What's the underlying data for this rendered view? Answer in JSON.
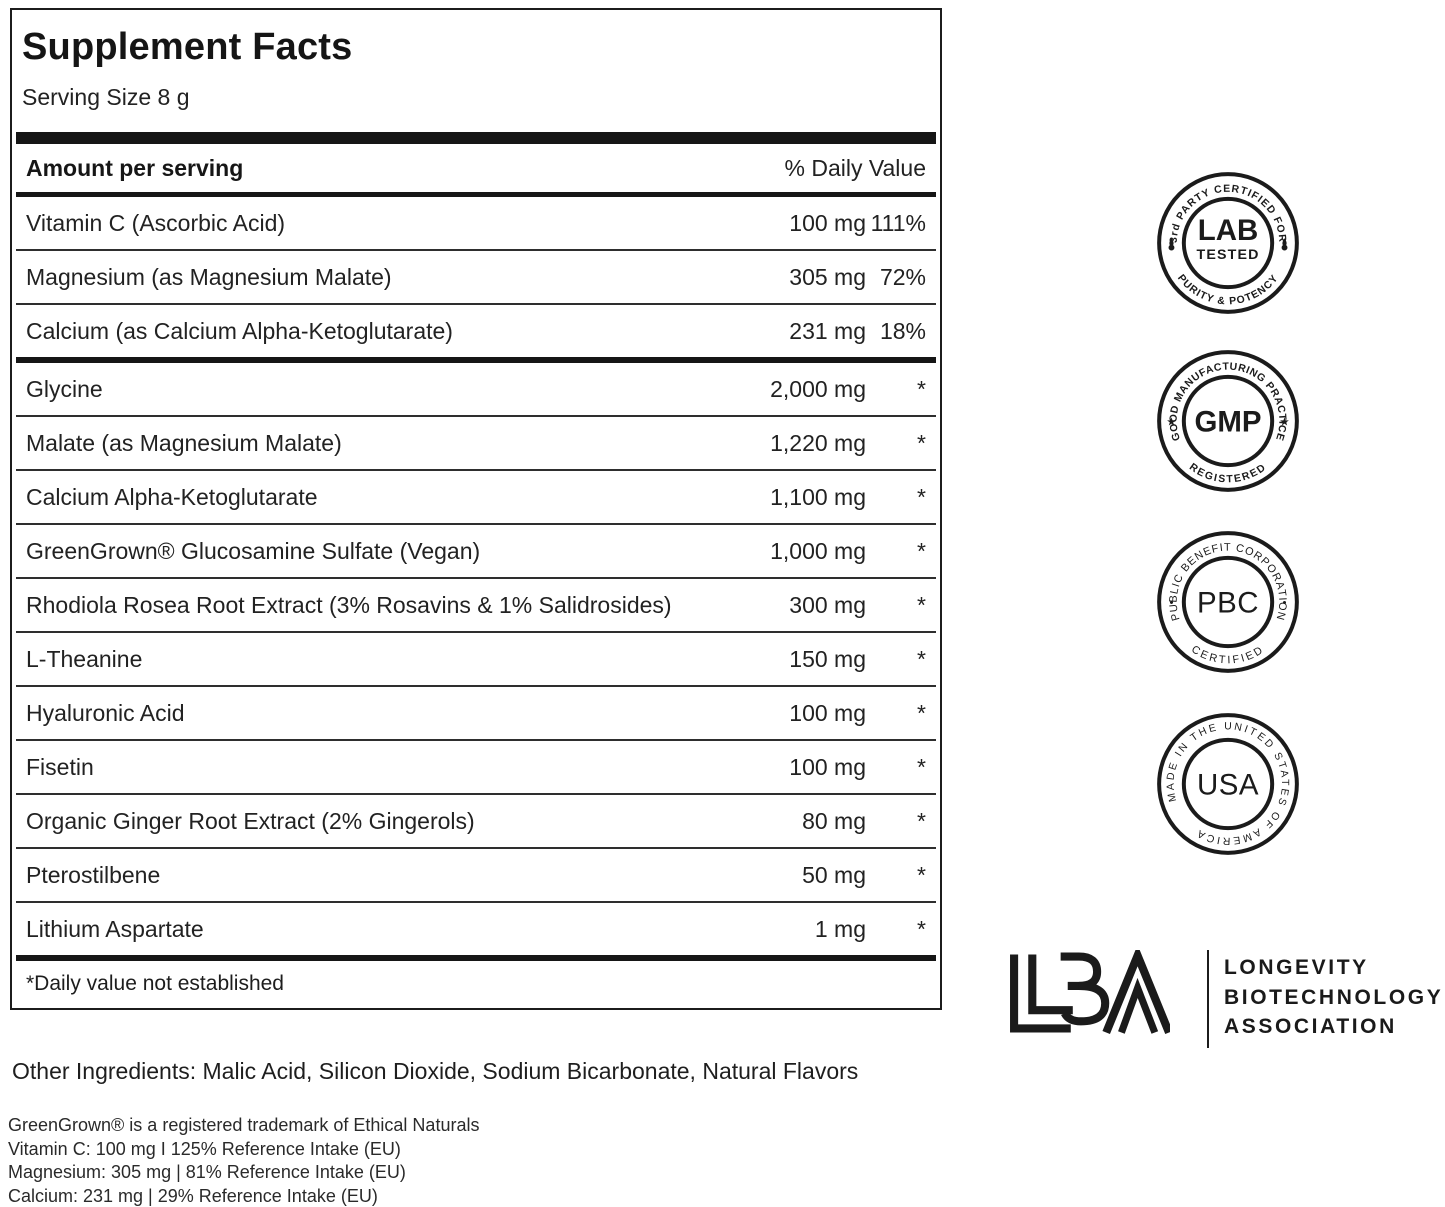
{
  "facts": {
    "title": "Supplement Facts",
    "serving_size": "Serving Size 8 g",
    "col_amount": "Amount per serving",
    "col_dv": "% Daily Value",
    "rows": [
      {
        "name": "Vitamin C (Ascorbic Acid)",
        "amount": "100 mg",
        "dv": "111%"
      },
      {
        "name": "Magnesium (as Magnesium Malate)",
        "amount": "305 mg",
        "dv": "72%"
      },
      {
        "name": "Calcium (as Calcium Alpha-Ketoglutarate)",
        "amount": "231 mg",
        "dv": "18%",
        "thick_after": true
      },
      {
        "name": "Glycine",
        "amount": "2,000 mg",
        "dv": "*"
      },
      {
        "name": "Malate (as Magnesium Malate)",
        "amount": "1,220 mg",
        "dv": "*"
      },
      {
        "name": "Calcium Alpha-Ketoglutarate",
        "amount": "1,100 mg",
        "dv": "*"
      },
      {
        "name": "GreenGrown® Glucosamine Sulfate (Vegan)",
        "amount": "1,000 mg",
        "dv": "*"
      },
      {
        "name": "Rhodiola Rosea Root Extract (3% Rosavins & 1% Salidrosides)",
        "amount": "300 mg",
        "dv": "*"
      },
      {
        "name": "L-Theanine",
        "amount": "150 mg",
        "dv": "*"
      },
      {
        "name": "Hyaluronic Acid",
        "amount": "100 mg",
        "dv": "*"
      },
      {
        "name": "Fisetin",
        "amount": "100 mg",
        "dv": "*"
      },
      {
        "name": "Organic Ginger Root Extract (2% Gingerols)",
        "amount": "80 mg",
        "dv": "*"
      },
      {
        "name": "Pterostilbene",
        "amount": "50 mg",
        "dv": "*"
      },
      {
        "name": "Lithium Aspartate",
        "amount": "1 mg",
        "dv": "*"
      }
    ],
    "footnote": "*Daily value not established"
  },
  "other_ingredients": "Other Ingredients: Malic Acid, Silicon Dioxide, Sodium Bicarbonate, Natural Flavors",
  "fine_print": [
    "GreenGrown® is a registered trademark of Ethical Naturals",
    "Vitamin C: 100 mg I 125% Reference Intake (EU)",
    "Magnesium: 305 mg | 81% Reference Intake (EU)",
    "Calcium: 231 mg | 29% Reference Intake (EU)"
  ],
  "badges": [
    {
      "top_arc": "3rd PARTY CERTIFIED FOR",
      "bottom_arc": "PURITY & POTENCY",
      "center_primary": "LAB",
      "center_secondary": "TESTED",
      "side_symbol": "droplet"
    },
    {
      "top_arc": "GOOD MANUFACTURING PRACTICE",
      "bottom_arc": "REGISTERED",
      "center_primary": "GMP",
      "side_glyph": "★"
    },
    {
      "top_arc": "PUBLIC BENEFIT CORPORATION",
      "bottom_arc": "CERTIFIED",
      "center_primary": "PBC",
      "side_glyph": "•"
    },
    {
      "wrap_arc": "MADE IN THE UNITED STATES OF AMERICA",
      "center_primary": "USA"
    }
  ],
  "lba": {
    "mark": "LBA",
    "lines": [
      "LONGEVITY",
      "BIOTECHNOLOGY",
      "ASSOCIATION"
    ]
  },
  "colors": {
    "ink": "#1b1b1b",
    "background": "#ffffff"
  }
}
